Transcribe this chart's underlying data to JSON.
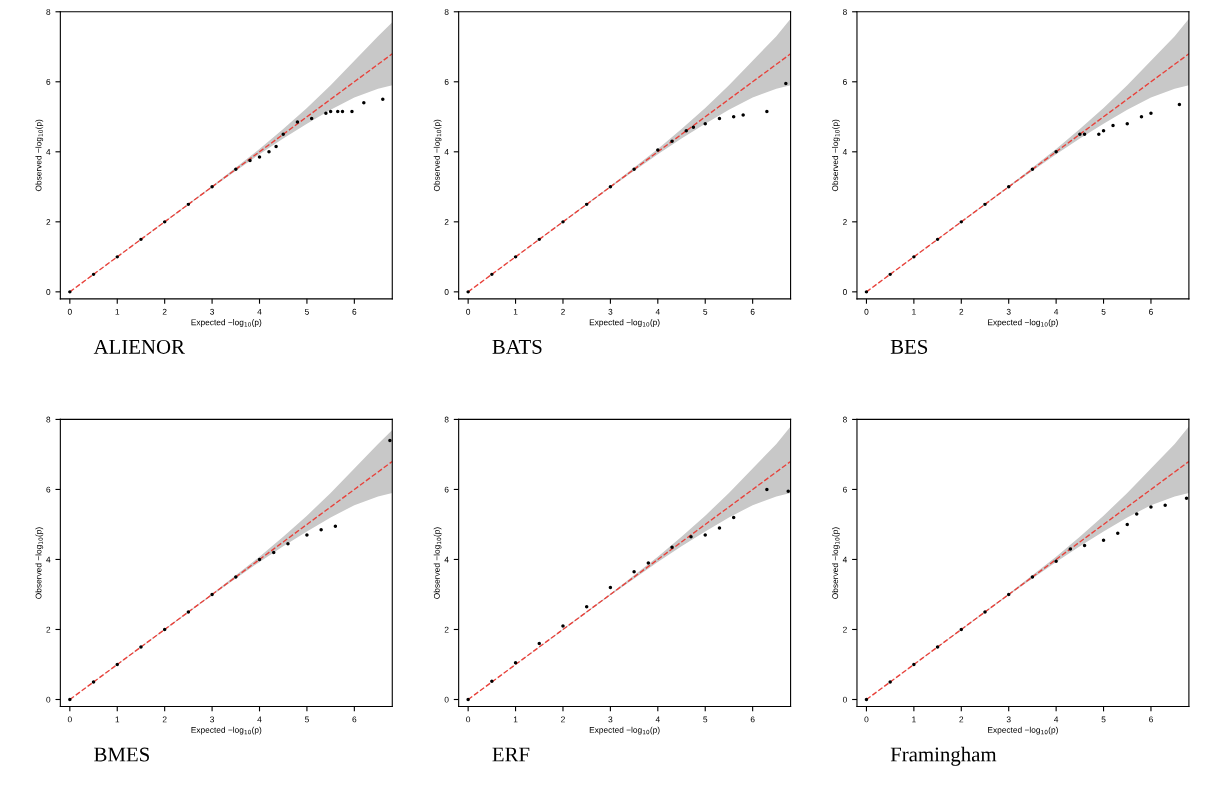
{
  "chart_data": [
    {
      "type": "scatter",
      "title": "ALIENOR",
      "xlabel": "Expected −log$_{10}$(p)",
      "ylabel": "Observed −log$_{10}$(p)",
      "xlim": [
        -0.2,
        6.8
      ],
      "ylim": [
        -0.2,
        8
      ],
      "xticks": [
        0,
        1,
        2,
        3,
        4,
        5,
        6
      ],
      "yticks": [
        0,
        2,
        4,
        6,
        8
      ],
      "series": [
        {
          "type": "line",
          "color": "#e8413a",
          "line_style": "dashed",
          "x": [
            0,
            3,
            4,
            4.5,
            5,
            5.5,
            6,
            6.5,
            6.8
          ],
          "values": [
            0,
            3,
            4,
            4.5,
            5,
            5.5,
            6,
            6.5,
            6.8
          ],
          "lower": [
            0,
            2.98,
            3.93,
            4.38,
            4.8,
            5.2,
            5.55,
            5.8,
            5.9
          ],
          "upper": [
            0,
            3.02,
            4.08,
            4.65,
            5.25,
            5.9,
            6.6,
            7.3,
            7.7
          ]
        },
        {
          "color": "#000000",
          "marker": "circle",
          "x": [
            0,
            0.5,
            1,
            1.5,
            2,
            2.5,
            3,
            3.5,
            3.8,
            4.0,
            4.2,
            4.35,
            4.5,
            4.8,
            5.1,
            5.4,
            5.5,
            5.65,
            5.75,
            5.95,
            6.2,
            6.6
          ],
          "values": [
            0,
            0.5,
            1,
            1.5,
            2,
            2.5,
            3,
            3.5,
            3.75,
            3.85,
            4.0,
            4.15,
            4.5,
            4.85,
            4.95,
            5.1,
            5.15,
            5.15,
            5.15,
            5.15,
            5.4,
            5.5
          ]
        }
      ]
    },
    {
      "type": "scatter",
      "title": "BATS",
      "xlabel": "Expected −log$_{10}$(p)",
      "ylabel": "Observed −log$_{10}$(p)",
      "xlim": [
        -0.2,
        6.8
      ],
      "ylim": [
        -0.2,
        8
      ],
      "xticks": [
        0,
        1,
        2,
        3,
        4,
        5,
        6
      ],
      "yticks": [
        0,
        2,
        4,
        6,
        8
      ],
      "series": [
        {
          "type": "line",
          "color": "#e8413a",
          "line_style": "dashed",
          "x": [
            0,
            3,
            4,
            4.5,
            5,
            5.5,
            6,
            6.5,
            6.8
          ],
          "values": [
            0,
            3,
            4,
            4.5,
            5,
            5.5,
            6,
            6.5,
            6.8
          ],
          "lower": [
            0,
            2.98,
            3.93,
            4.38,
            4.8,
            5.2,
            5.55,
            5.8,
            5.9
          ],
          "upper": [
            0,
            3.02,
            4.08,
            4.65,
            5.25,
            5.9,
            6.6,
            7.3,
            7.8
          ]
        },
        {
          "color": "#000000",
          "marker": "circle",
          "x": [
            0,
            0.5,
            1,
            1.5,
            2,
            2.5,
            3,
            3.5,
            4,
            4.3,
            4.6,
            4.75,
            5.0,
            5.3,
            5.6,
            5.8,
            6.3,
            6.7
          ],
          "values": [
            0,
            0.5,
            1,
            1.5,
            2,
            2.5,
            3,
            3.5,
            4.05,
            4.3,
            4.6,
            4.7,
            4.8,
            4.95,
            5.0,
            5.05,
            5.15,
            5.95
          ]
        }
      ]
    },
    {
      "type": "scatter",
      "title": "BES",
      "xlabel": "Expected −log$_{10}$(p)",
      "ylabel": "Observed −log$_{10}$(p)",
      "xlim": [
        -0.2,
        6.8
      ],
      "ylim": [
        -0.2,
        8
      ],
      "xticks": [
        0,
        1,
        2,
        3,
        4,
        5,
        6
      ],
      "yticks": [
        0,
        2,
        4,
        6,
        8
      ],
      "series": [
        {
          "type": "line",
          "color": "#e8413a",
          "line_style": "dashed",
          "x": [
            0,
            3,
            4,
            4.5,
            5,
            5.5,
            6,
            6.5,
            6.8
          ],
          "values": [
            0,
            3,
            4,
            4.5,
            5,
            5.5,
            6,
            6.5,
            6.8
          ],
          "lower": [
            0,
            2.98,
            3.93,
            4.38,
            4.8,
            5.2,
            5.55,
            5.8,
            5.9
          ],
          "upper": [
            0,
            3.02,
            4.08,
            4.65,
            5.25,
            5.9,
            6.6,
            7.3,
            7.8
          ]
        },
        {
          "color": "#000000",
          "marker": "circle",
          "x": [
            0,
            0.5,
            1,
            1.5,
            2,
            2.5,
            3,
            3.5,
            4,
            4.5,
            4.6,
            4.9,
            5.0,
            5.2,
            5.5,
            5.8,
            6.0,
            6.6
          ],
          "values": [
            0,
            0.5,
            1,
            1.5,
            2,
            2.5,
            3,
            3.5,
            4,
            4.5,
            4.5,
            4.5,
            4.6,
            4.75,
            4.8,
            5.0,
            5.1,
            5.35
          ]
        }
      ]
    },
    {
      "type": "scatter",
      "title": "BMES",
      "xlabel": "Expected −log$_{10}$(p)",
      "ylabel": "Observed −log$_{10}$(p)",
      "xlim": [
        -0.2,
        6.8
      ],
      "ylim": [
        -0.2,
        8
      ],
      "xticks": [
        0,
        1,
        2,
        3,
        4,
        5,
        6
      ],
      "yticks": [
        0,
        2,
        4,
        6,
        8
      ],
      "series": [
        {
          "type": "line",
          "color": "#e8413a",
          "line_style": "dashed",
          "x": [
            0,
            3,
            4,
            4.5,
            5,
            5.5,
            6,
            6.5,
            6.8
          ],
          "values": [
            0,
            3,
            4,
            4.5,
            5,
            5.5,
            6,
            6.5,
            6.8
          ],
          "lower": [
            0,
            2.98,
            3.93,
            4.38,
            4.8,
            5.2,
            5.55,
            5.8,
            5.9
          ],
          "upper": [
            0,
            3.02,
            4.08,
            4.65,
            5.25,
            5.9,
            6.6,
            7.3,
            7.7
          ]
        },
        {
          "color": "#000000",
          "marker": "circle",
          "x": [
            0,
            0.5,
            1,
            1.5,
            2,
            2.5,
            3,
            3.5,
            4,
            4.3,
            4.6,
            5.0,
            5.3,
            5.6,
            6.75
          ],
          "values": [
            0,
            0.5,
            1,
            1.5,
            2,
            2.5,
            3,
            3.5,
            4,
            4.2,
            4.45,
            4.7,
            4.85,
            4.95,
            7.4
          ]
        }
      ]
    },
    {
      "type": "scatter",
      "title": "ERF",
      "xlabel": "Expected −log$_{10}$(p)",
      "ylabel": "Observed −log$_{10}$(p)",
      "xlim": [
        -0.2,
        6.8
      ],
      "ylim": [
        -0.2,
        8
      ],
      "xticks": [
        0,
        1,
        2,
        3,
        4,
        5,
        6
      ],
      "yticks": [
        0,
        2,
        4,
        6,
        8
      ],
      "series": [
        {
          "type": "line",
          "color": "#e8413a",
          "line_style": "dashed",
          "x": [
            0,
            3,
            4,
            4.5,
            5,
            5.5,
            6,
            6.5,
            6.8
          ],
          "values": [
            0,
            3,
            4,
            4.5,
            5,
            5.5,
            6,
            6.5,
            6.8
          ],
          "lower": [
            0,
            2.98,
            3.93,
            4.38,
            4.8,
            5.2,
            5.55,
            5.8,
            5.9
          ],
          "upper": [
            0,
            3.02,
            4.08,
            4.65,
            5.25,
            5.9,
            6.6,
            7.3,
            7.8
          ]
        },
        {
          "color": "#000000",
          "marker": "circle",
          "x": [
            0,
            0.5,
            1,
            1.5,
            2,
            2.5,
            3,
            3.5,
            3.8,
            4.3,
            4.7,
            5.0,
            5.3,
            5.6,
            6.3,
            6.75
          ],
          "values": [
            0,
            0.52,
            1.05,
            1.6,
            2.1,
            2.65,
            3.2,
            3.65,
            3.9,
            4.35,
            4.65,
            4.7,
            4.9,
            5.2,
            6.0,
            5.95
          ]
        }
      ]
    },
    {
      "type": "scatter",
      "title": "Framingham",
      "xlabel": "Expected −log$_{10}$(p)",
      "ylabel": "Observed −log$_{10}$(p)",
      "xlim": [
        -0.2,
        6.8
      ],
      "ylim": [
        -0.2,
        8
      ],
      "xticks": [
        0,
        1,
        2,
        3,
        4,
        5,
        6
      ],
      "yticks": [
        0,
        2,
        4,
        6,
        8
      ],
      "series": [
        {
          "type": "line",
          "color": "#e8413a",
          "line_style": "dashed",
          "x": [
            0,
            3,
            4,
            4.5,
            5,
            5.5,
            6,
            6.5,
            6.8
          ],
          "values": [
            0,
            3,
            4,
            4.5,
            5,
            5.5,
            6,
            6.5,
            6.8
          ],
          "lower": [
            0,
            2.98,
            3.93,
            4.38,
            4.8,
            5.2,
            5.55,
            5.8,
            5.9
          ],
          "upper": [
            0,
            3.02,
            4.08,
            4.65,
            5.25,
            5.9,
            6.6,
            7.3,
            7.8
          ]
        },
        {
          "color": "#000000",
          "marker": "circle",
          "x": [
            0,
            0.5,
            1,
            1.5,
            2,
            2.5,
            3,
            3.5,
            4,
            4.3,
            4.6,
            5.0,
            5.3,
            5.5,
            5.7,
            6.0,
            6.3,
            6.75
          ],
          "values": [
            0,
            0.5,
            1,
            1.5,
            2,
            2.5,
            3,
            3.5,
            3.95,
            4.3,
            4.4,
            4.55,
            4.75,
            5.0,
            5.3,
            5.5,
            5.55,
            5.75
          ]
        }
      ]
    }
  ]
}
